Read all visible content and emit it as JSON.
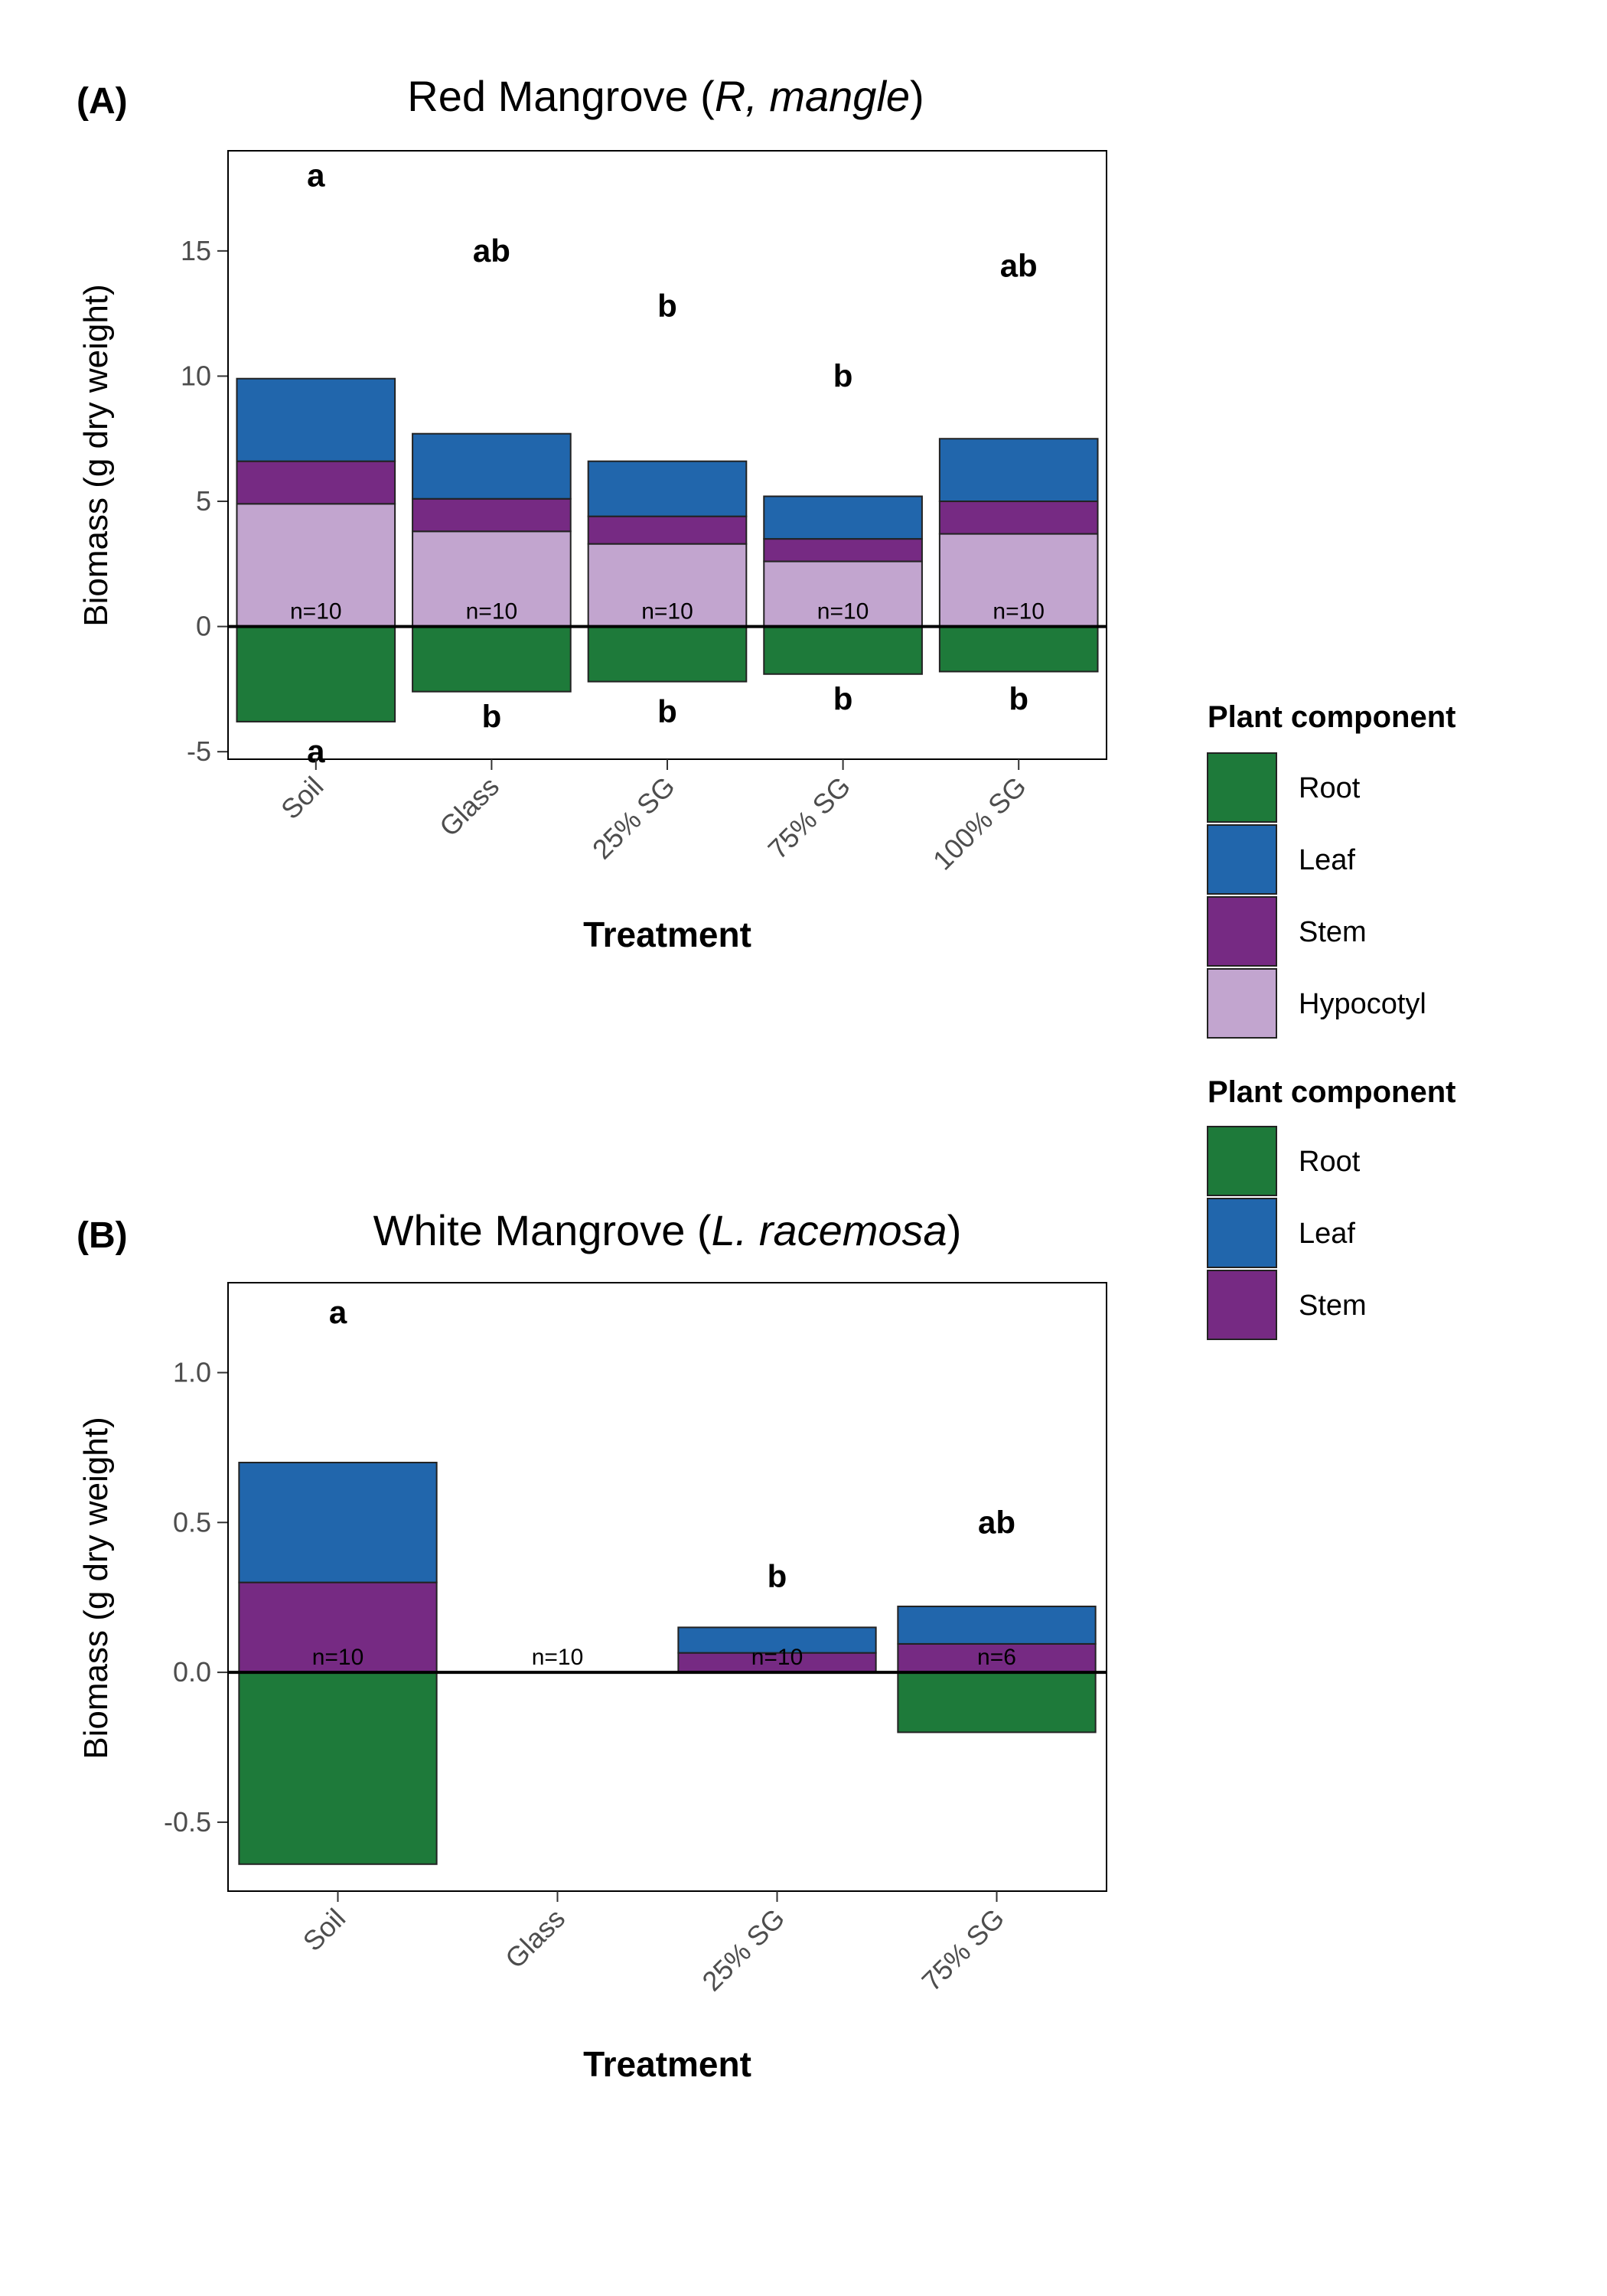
{
  "chart_data": [
    {
      "panel": "(A)",
      "title_prefix": "Red Mangrove (",
      "title_italic": "R, mangle",
      "title_suffix": ")",
      "type": "bar",
      "stacked": true,
      "xlabel": "Treatment",
      "ylabel": "Biomass (g dry weight)",
      "ylim": [
        -5.3,
        19
      ],
      "yticks": [
        -5,
        0,
        5,
        10,
        15
      ],
      "categories": [
        "Soil",
        "Glass",
        "25% SG",
        "75% SG",
        "100% SG"
      ],
      "series": [
        {
          "name": "Hypocotyl",
          "values": [
            4.9,
            3.8,
            3.3,
            2.6,
            3.7
          ]
        },
        {
          "name": "Stem",
          "values": [
            1.7,
            1.3,
            1.1,
            0.9,
            1.3
          ]
        },
        {
          "name": "Leaf",
          "values": [
            3.3,
            2.6,
            2.2,
            1.7,
            2.5
          ]
        },
        {
          "name": "Root",
          "values": [
            -3.8,
            -2.6,
            -2.2,
            -1.9,
            -1.8
          ]
        }
      ],
      "n_labels": [
        "n=10",
        "n=10",
        "n=10",
        "n=10",
        "n=10"
      ],
      "sig_above": [
        "a",
        "ab",
        "b",
        "b",
        "ab"
      ],
      "sig_above_y": [
        18.0,
        15.0,
        12.8,
        10.0,
        14.4
      ],
      "sig_below": [
        "a",
        "b",
        "b",
        "b",
        "b"
      ],
      "sig_below_y": [
        -5.0,
        -3.6,
        -3.4,
        -2.9,
        -2.9
      ]
    },
    {
      "panel": "(B)",
      "title_prefix": "White Mangrove (",
      "title_italic": "L. racemosa",
      "title_suffix": ")",
      "type": "bar",
      "stacked": true,
      "xlabel": "Treatment",
      "ylabel": "Biomass (g dry weight)",
      "ylim": [
        -0.73,
        1.3
      ],
      "yticks": [
        -0.5,
        0.0,
        0.5,
        1.0
      ],
      "ytick_labels": [
        "-0.5",
        "0.0",
        "0.5",
        "1.0"
      ],
      "categories": [
        "Soil",
        "Glass",
        "25% SG",
        "75% SG"
      ],
      "series": [
        {
          "name": "Stem",
          "values": [
            0.3,
            0,
            0.065,
            0.095
          ]
        },
        {
          "name": "Leaf",
          "values": [
            0.4,
            0,
            0.085,
            0.125
          ]
        },
        {
          "name": "Root",
          "values": [
            -0.64,
            0,
            0,
            -0.2
          ]
        }
      ],
      "n_labels": [
        "n=10",
        "n=10",
        "n=10",
        "n=6"
      ],
      "sig_above": [
        "a",
        "",
        "b",
        "ab"
      ],
      "sig_above_y": [
        1.2,
        0,
        0.32,
        0.5
      ]
    }
  ],
  "legends": [
    {
      "title": "Plant component",
      "items": [
        "Root",
        "Leaf",
        "Stem",
        "Hypocotyl"
      ]
    },
    {
      "title": "Plant component",
      "items": [
        "Root",
        "Leaf",
        "Stem"
      ]
    }
  ],
  "colors": {
    "Root": "#1e7a3a",
    "Leaf": "#2166ac",
    "Stem": "#762a83",
    "Hypocotyl": "#c2a5cf"
  }
}
